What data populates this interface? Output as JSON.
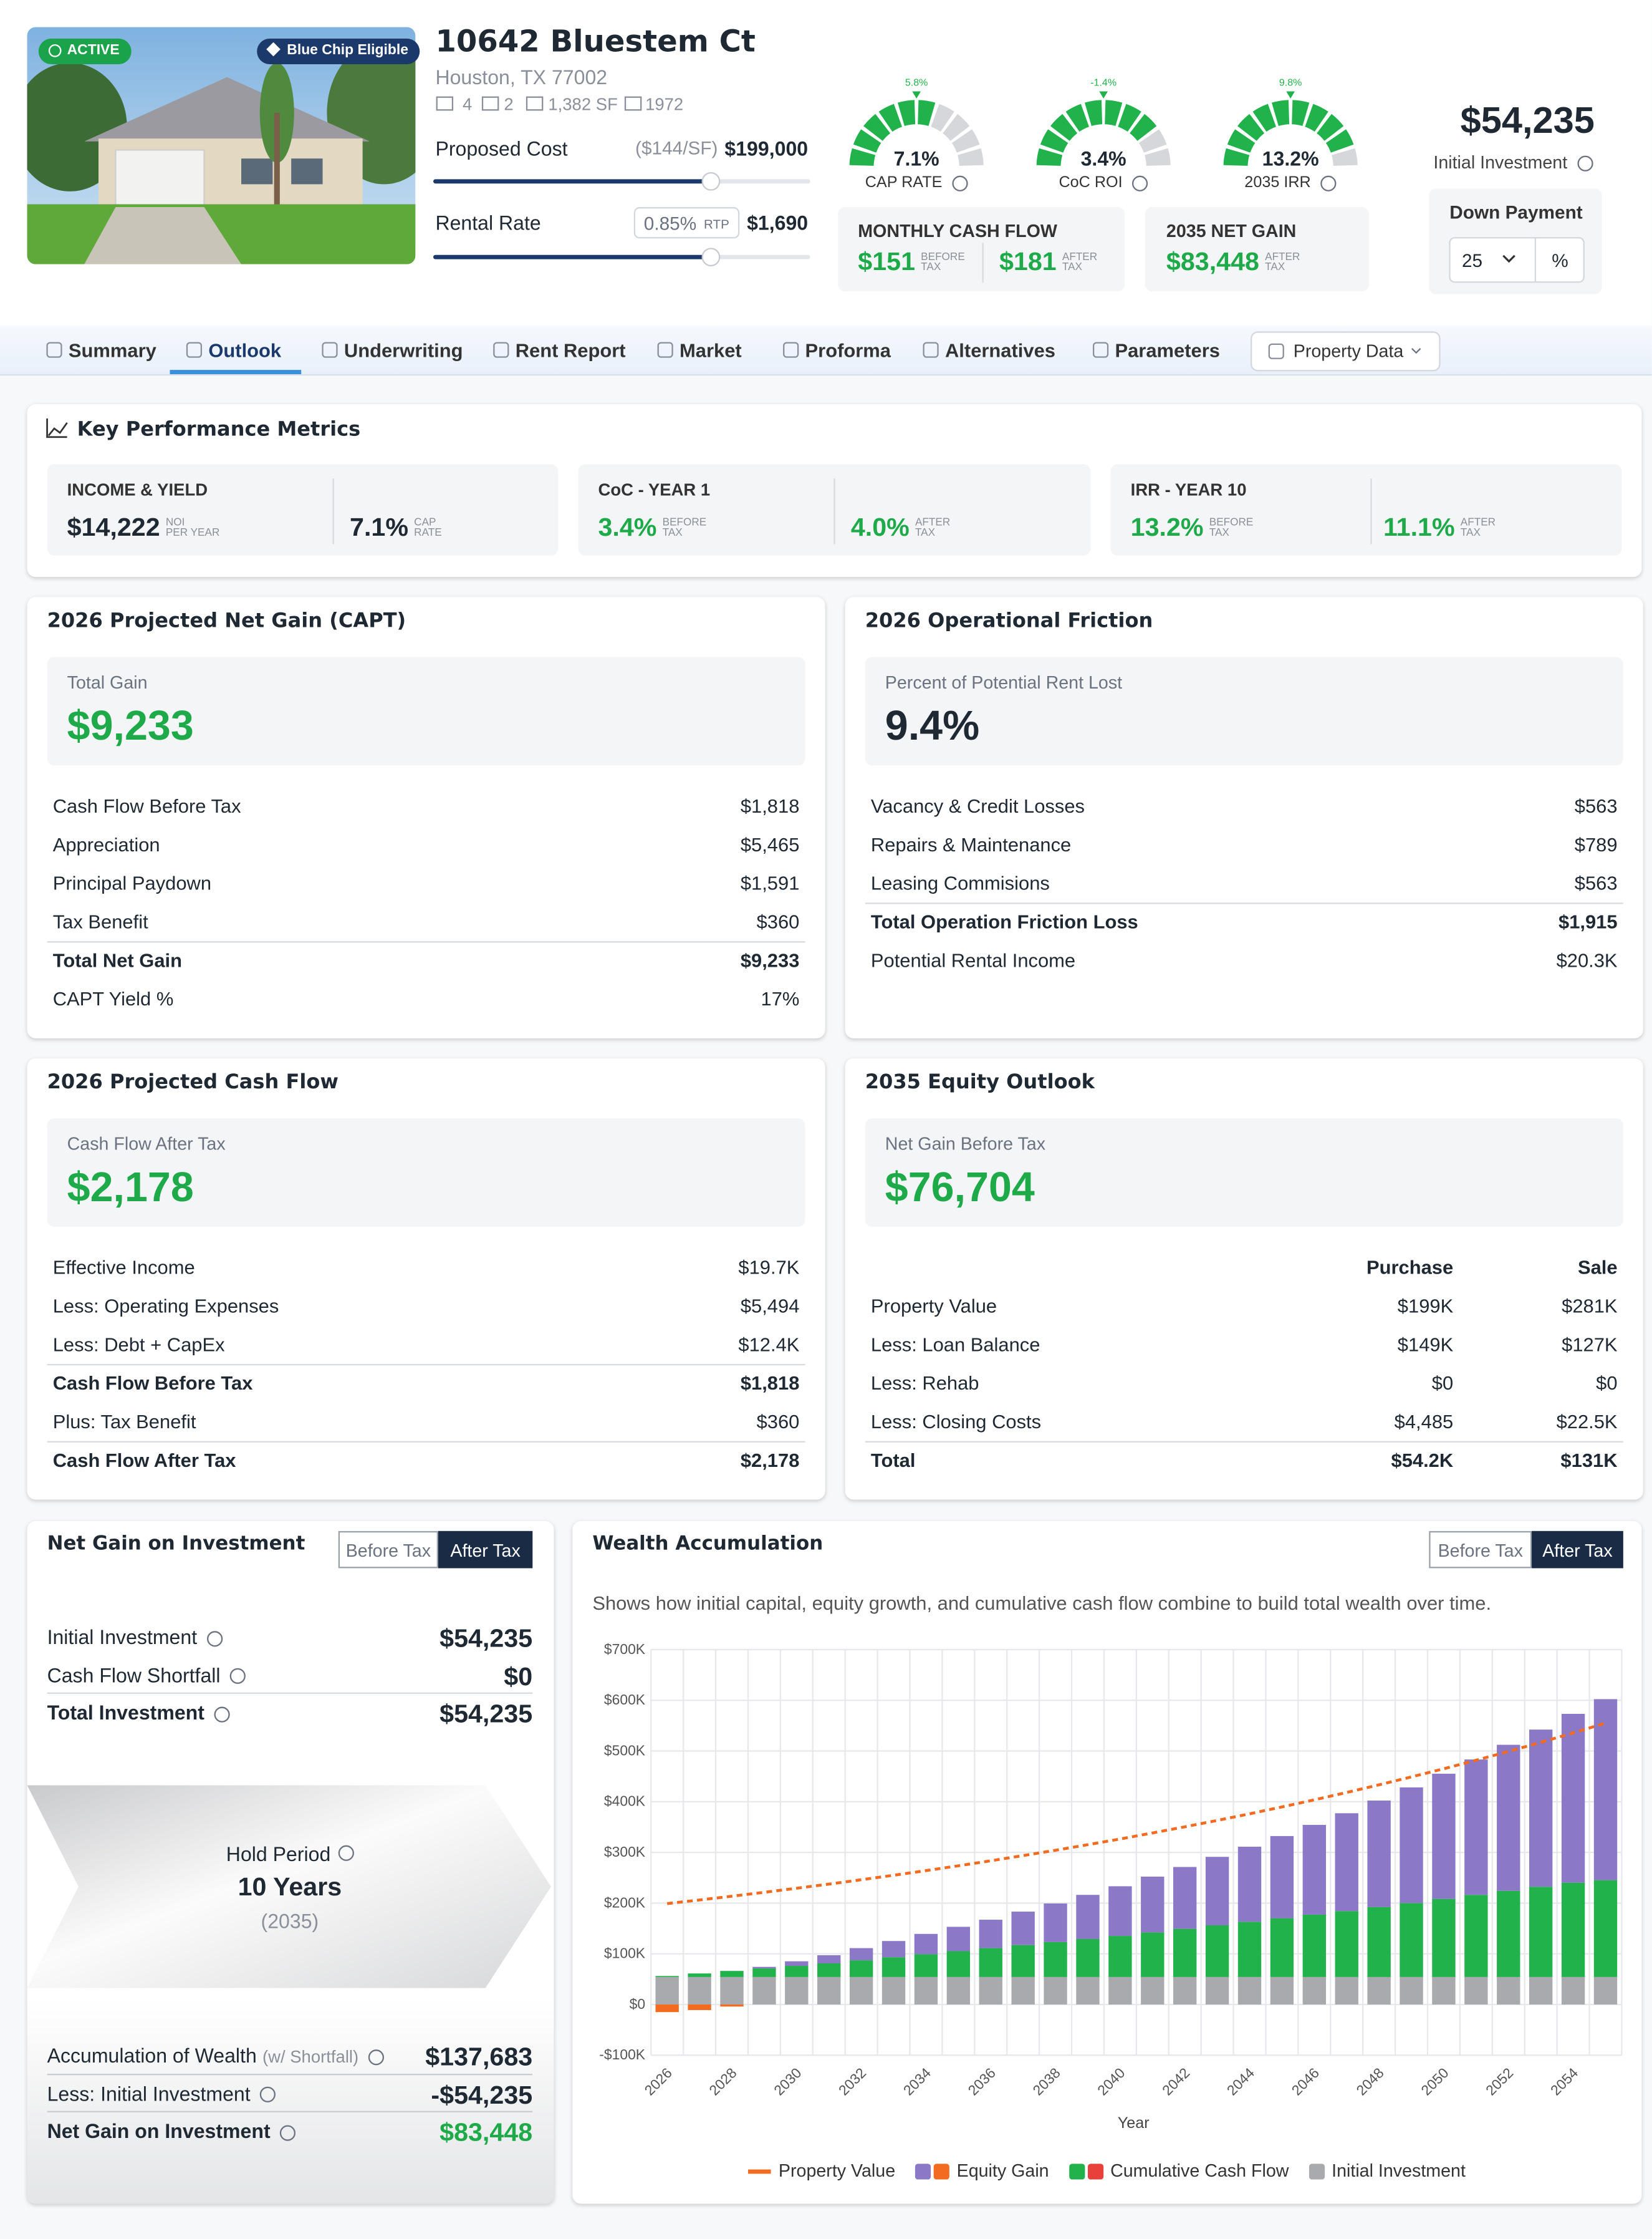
{
  "header": {
    "status": "ACTIVE",
    "badge": "Blue Chip Eligible",
    "address": "10642 Bluestem Ct",
    "city": "Houston, TX 77002",
    "beds": "4",
    "baths": "2",
    "area": "1,382 SF",
    "year_built": "1972",
    "proposed_cost": {
      "label": "Proposed Cost",
      "per_sf": "($144/SF)",
      "value": "$199,000"
    },
    "rental_rate": {
      "label": "Rental Rate",
      "rtp": "0.85%",
      "rtp_unit": "RTP",
      "value": "$1,690"
    }
  },
  "gauges": [
    {
      "benchmark": "5.8%",
      "value": "7.1%",
      "label": "CAP RATE"
    },
    {
      "benchmark": "-1.4%",
      "value": "3.4%",
      "label": "CoC ROI"
    },
    {
      "benchmark": "9.8%",
      "value": "13.2%",
      "label": "2035 IRR"
    }
  ],
  "monthly_cash_flow": {
    "title": "MONTHLY CASH FLOW",
    "items": [
      {
        "value": "$151",
        "label": [
          "BEFORE",
          "TAX"
        ]
      },
      {
        "value": "$181",
        "label": [
          "AFTER",
          "TAX"
        ]
      }
    ]
  },
  "net_gain_2035": {
    "title": "2035 NET GAIN",
    "value": "$83,448",
    "label": [
      "AFTER",
      "TAX"
    ]
  },
  "investment": {
    "value": "$54,235",
    "label": "Initial Investment",
    "down_payment_label": "Down Payment",
    "down_payment": "25",
    "unit": "%"
  },
  "tabs": [
    "Summary",
    "Outlook",
    "Underwriting",
    "Rent Report",
    "Market",
    "Proforma",
    "Alternatives",
    "Parameters"
  ],
  "property_data": "Property Data",
  "kpi": {
    "title": "Key Performance Metrics",
    "groups": [
      {
        "title": "INCOME & YIELD",
        "items": [
          {
            "value": "$14,222",
            "label": [
              "NOI",
              "PER YEAR"
            ]
          },
          {
            "value": "7.1%",
            "label": [
              "CAP",
              "RATE"
            ]
          }
        ]
      },
      {
        "title": "CoC - YEAR 1",
        "items": [
          {
            "value": "3.4%",
            "label": [
              "BEFORE",
              "TAX"
            ]
          },
          {
            "value": "4.0%",
            "label": [
              "AFTER",
              "TAX"
            ]
          }
        ]
      },
      {
        "title": "IRR - YEAR 10",
        "items": [
          {
            "value": "13.2%",
            "label": [
              "BEFORE",
              "TAX"
            ]
          },
          {
            "value": "11.1%",
            "label": [
              "AFTER",
              "TAX"
            ]
          }
        ]
      }
    ]
  },
  "cards": [
    {
      "title": "2026 Projected Net Gain (CAPT)",
      "summary_label": "Total Gain",
      "summary_value": "$9,233",
      "green": true,
      "rows": [
        {
          "label": "Cash Flow Before Tax",
          "values": [
            "$1,818"
          ]
        },
        {
          "label": "Appreciation",
          "values": [
            "$5,465"
          ]
        },
        {
          "label": "Principal Paydown",
          "values": [
            "$1,591"
          ]
        },
        {
          "label": "Tax Benefit",
          "values": [
            "$360"
          ]
        },
        {
          "label": "Total Net Gain",
          "values": [
            "$9,233"
          ],
          "bold": true
        },
        {
          "label": "CAPT Yield %",
          "values": [
            "17%"
          ]
        }
      ]
    },
    {
      "title": "2026 Operational Friction",
      "summary_label": "Percent of Potential Rent Lost",
      "summary_value": "9.4%",
      "green": false,
      "rows": [
        {
          "label": "Vacancy & Credit Losses",
          "values": [
            "$563"
          ]
        },
        {
          "label": "Repairs & Maintenance",
          "values": [
            "$789"
          ]
        },
        {
          "label": "Leasing Commisions",
          "values": [
            "$563"
          ]
        },
        {
          "label": "Total Operation Friction Loss",
          "values": [
            "$1,915"
          ],
          "bold": true
        },
        {
          "label": "Potential Rental Income",
          "values": [
            "$20.3K"
          ]
        }
      ]
    },
    {
      "title": "2026 Projected Cash Flow",
      "summary_label": "Cash Flow After Tax",
      "summary_value": "$2,178",
      "green": true,
      "rows": [
        {
          "label": "Effective Income",
          "values": [
            "$19.7K"
          ]
        },
        {
          "label": "Less: Operating Expenses",
          "values": [
            "$5,494"
          ]
        },
        {
          "label": "Less: Debt + CapEx",
          "values": [
            "$12.4K"
          ]
        },
        {
          "label": "Cash Flow Before Tax",
          "values": [
            "$1,818"
          ],
          "bold": true
        },
        {
          "label": "Plus: Tax Benefit",
          "values": [
            "$360"
          ]
        },
        {
          "label": "Cash Flow After Tax",
          "values": [
            "$2,178"
          ],
          "bold": true
        }
      ]
    },
    {
      "title": "2035 Equity Outlook",
      "summary_label": "Net Gain Before Tax",
      "summary_value": "$76,704",
      "green": true,
      "columns": [
        "Purchase",
        "Sale"
      ],
      "rows": [
        {
          "label": "Property Value",
          "values": [
            "$199K",
            "$281K"
          ]
        },
        {
          "label": "Less: Loan Balance",
          "values": [
            "$149K",
            "$127K"
          ]
        },
        {
          "label": "Less: Rehab",
          "values": [
            "$0",
            "$0"
          ]
        },
        {
          "label": "Less: Closing Costs",
          "values": [
            "$4,485",
            "$22.5K"
          ]
        },
        {
          "label": "Total",
          "values": [
            "$54.2K",
            "$131K"
          ],
          "bold": true
        }
      ]
    }
  ],
  "net_gain": {
    "title": "Net Gain on Investment",
    "toggle": [
      "Before Tax",
      "After Tax"
    ],
    "rows": [
      {
        "label": "Initial Investment",
        "value": "$54,235"
      },
      {
        "label": "Cash Flow Shortfall",
        "value": "$0"
      },
      {
        "label": "Total Investment",
        "value": "$54,235",
        "bold": true
      }
    ],
    "hold": {
      "label": "Hold Period",
      "value": "10 Years",
      "year": "(2035)"
    },
    "summary": [
      {
        "label": "Accumulation of Wealth",
        "note": "(w/ Shortfall)",
        "value": "$137,683"
      },
      {
        "label": "Less: Initial Investment",
        "value": "-$54,235"
      },
      {
        "label": "Net Gain on Investment",
        "value": "$83,448",
        "bold": true,
        "green": true
      }
    ]
  },
  "chart_data": {
    "type": "stacked-bar",
    "title": "Wealth Accumulation",
    "toggle": [
      "Before Tax",
      "After Tax"
    ],
    "description": "Shows how initial capital, equity growth, and cumulative cash flow combine to build total wealth over time.",
    "x_label": "Year",
    "legend": "bottom",
    "grid": true,
    "categories": [
      2026,
      null,
      2028,
      null,
      2030,
      null,
      2032,
      null,
      2034,
      null,
      2036,
      null,
      2038,
      null,
      2040,
      null,
      2042,
      null,
      2044,
      null,
      2046,
      null,
      2048,
      null,
      2050,
      null,
      2052,
      null,
      2054,
      null
    ],
    "ylim": [
      -100000,
      700000
    ],
    "yticks": [
      {
        "value": -100000,
        "label": "-$100K"
      },
      {
        "value": 0,
        "label": "$0"
      },
      {
        "value": 100000,
        "label": "$100K"
      },
      {
        "value": 200000,
        "label": "$200K"
      },
      {
        "value": 300000,
        "label": "$300K"
      },
      {
        "value": 400000,
        "label": "$400K"
      },
      {
        "value": 500000,
        "label": "$500K"
      },
      {
        "value": 600000,
        "label": "$600K"
      },
      {
        "value": 700000,
        "label": "$700K"
      }
    ],
    "series": [
      {
        "name": "Property Value",
        "type": "line",
        "dashed": true,
        "color": "#f26b21",
        "values": [
          199000,
          206200,
          213600,
          221300,
          229300,
          237500,
          246100,
          254900,
          264100,
          273600,
          283500,
          293700,
          304200,
          315200,
          326500,
          338300,
          350500,
          363100,
          376100,
          389700,
          403700,
          418200,
          433300,
          448900,
          465000,
          481800,
          499100,
          517100,
          535700,
          555000
        ]
      },
      {
        "name": "Equity Gain",
        "color": "#8b78c6",
        "negative_color": "#f26b21",
        "values": [
          -15000,
          -11000,
          -4000,
          3000,
          9000,
          16000,
          24000,
          32000,
          40000,
          48000,
          56000,
          66000,
          76000,
          87000,
          98000,
          110000,
          122000,
          135000,
          148000,
          162000,
          177000,
          193000,
          210000,
          228000,
          247000,
          267000,
          288000,
          310000,
          333000,
          357000
        ]
      },
      {
        "name": "Cumulative Cash Flow",
        "color": "#22b24c",
        "negative_color": "#e8413c",
        "values": [
          2000,
          7000,
          12000,
          17000,
          22000,
          27000,
          33000,
          39000,
          45000,
          51000,
          57000,
          63000,
          69000,
          75000,
          81000,
          88000,
          95000,
          102000,
          109000,
          116000,
          123000,
          130000,
          138000,
          146000,
          154000,
          162000,
          170000,
          178000,
          186000,
          191000
        ]
      },
      {
        "name": "Initial Investment",
        "color": "#a8aaad",
        "values": [
          54235,
          54235,
          54235,
          54235,
          54235,
          54235,
          54235,
          54235,
          54235,
          54235,
          54235,
          54235,
          54235,
          54235,
          54235,
          54235,
          54235,
          54235,
          54235,
          54235,
          54235,
          54235,
          54235,
          54235,
          54235,
          54235,
          54235,
          54235,
          54235,
          54235
        ]
      }
    ]
  }
}
